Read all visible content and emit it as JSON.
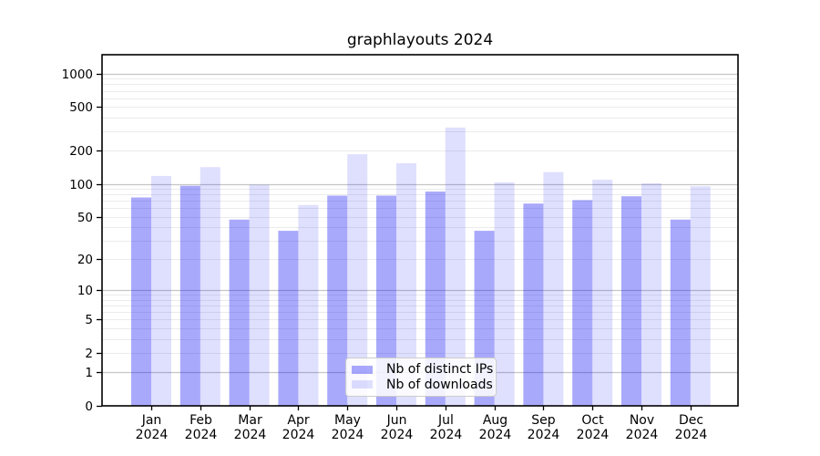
{
  "title": "graphlayouts 2024",
  "chart_data": {
    "type": "bar",
    "title": "graphlayouts 2024",
    "categories": [
      "Jan 2024",
      "Feb 2024",
      "Mar 2024",
      "Apr 2024",
      "May 2024",
      "Jun 2024",
      "Jul 2024",
      "Aug 2024",
      "Sep 2024",
      "Oct 2024",
      "Nov 2024",
      "Dec 2024"
    ],
    "series": [
      {
        "name": "Nb of distinct IPs",
        "values": [
          75,
          96,
          47,
          37,
          78,
          78,
          85,
          37,
          66,
          71,
          77,
          47
        ]
      },
      {
        "name": "Nb of downloads",
        "values": [
          118,
          142,
          98,
          64,
          186,
          154,
          325,
          103,
          128,
          109,
          101,
          95
        ]
      }
    ],
    "yscale": "log1p",
    "yticks": [
      1000,
      500,
      200,
      100,
      50,
      20,
      10,
      5,
      2,
      1,
      0
    ],
    "major_gridlines": [
      1,
      10,
      100,
      1000
    ],
    "ylim": [
      0,
      1480
    ],
    "grid": true,
    "legend_position": "inside lower center",
    "colors": {
      "distinct_ips_fill": "rgba(10,10,245,0.35)",
      "downloads_fill": "rgba(10,10,245,0.13)",
      "distinct_ips_hex": "#a7a7fa",
      "downloads_hex": "#dcdcfb",
      "major_grid": "#c6c6c6",
      "minor_grid": "#ebebeb",
      "frame": "#000000",
      "text": "#000000"
    }
  }
}
